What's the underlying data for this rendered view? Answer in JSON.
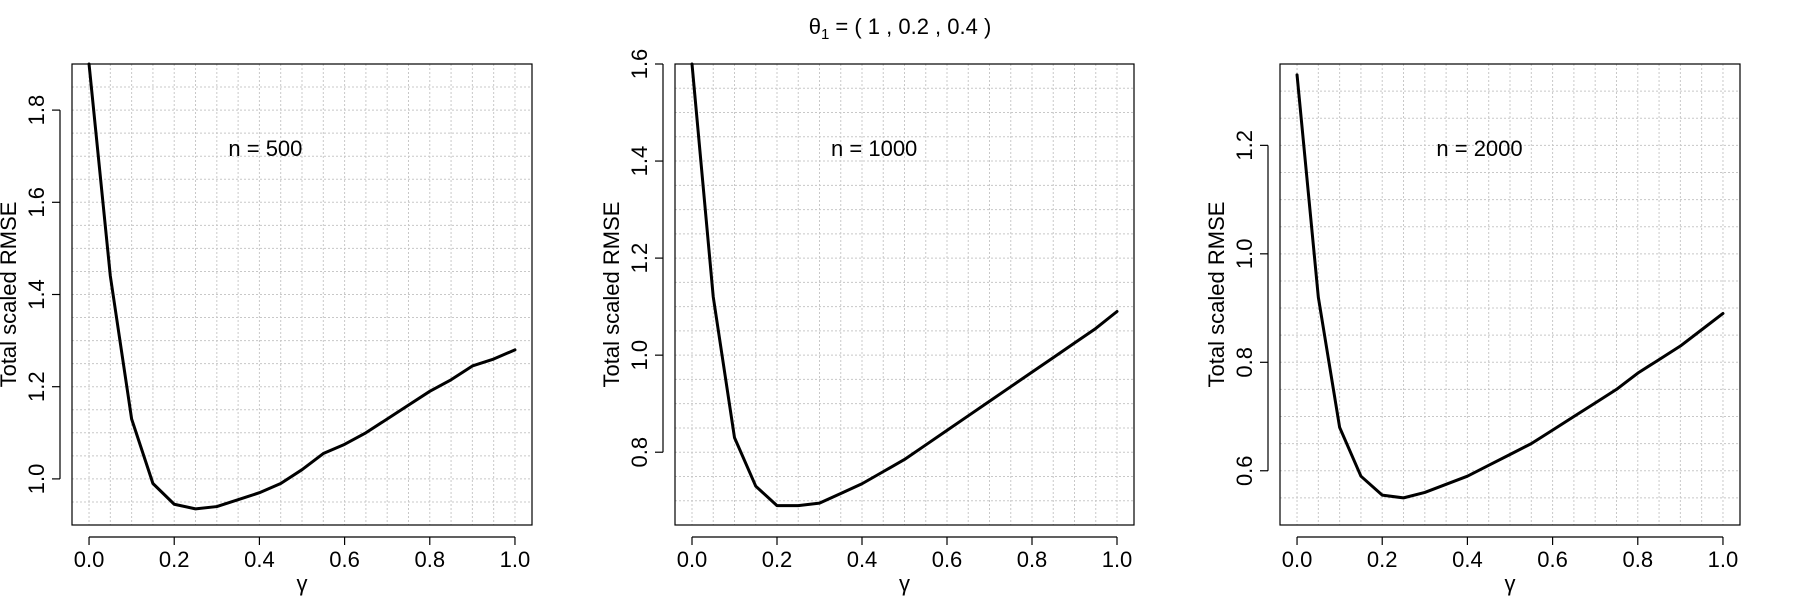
{
  "title": {
    "symbol": "θ",
    "subscript": "1",
    "rest": " =  ( 1 ,  0.2 ,  0.4 )"
  },
  "chart_data": [
    {
      "type": "line",
      "xlabel": "γ",
      "ylabel": "Total scaled RMSE",
      "annotation": "n = 500",
      "xlim": [
        -0.04,
        1.04
      ],
      "ylim": [
        0.9,
        1.9
      ],
      "grid": true,
      "x_ticks": [
        0.0,
        0.2,
        0.4,
        0.6,
        0.8,
        1.0
      ],
      "x_tick_labels": [
        "0.0",
        "0.2",
        "0.4",
        "0.6",
        "0.8",
        "1.0"
      ],
      "y_ticks": [
        1.0,
        1.2,
        1.4,
        1.6,
        1.8
      ],
      "y_tick_labels": [
        "1.0",
        "1.2",
        "1.4",
        "1.6",
        "1.8"
      ],
      "x": [
        0.0,
        0.05,
        0.1,
        0.15,
        0.2,
        0.25,
        0.3,
        0.35,
        0.4,
        0.45,
        0.5,
        0.55,
        0.6,
        0.65,
        0.7,
        0.75,
        0.8,
        0.85,
        0.9,
        0.95,
        1.0
      ],
      "y": [
        1.9,
        1.44,
        1.13,
        0.99,
        0.945,
        0.935,
        0.94,
        0.955,
        0.97,
        0.99,
        1.02,
        1.055,
        1.075,
        1.1,
        1.13,
        1.16,
        1.19,
        1.215,
        1.245,
        1.26,
        1.28
      ]
    },
    {
      "type": "line",
      "xlabel": "γ",
      "ylabel": "Total scaled RMSE",
      "annotation": "n = 1000",
      "xlim": [
        -0.04,
        1.04
      ],
      "ylim": [
        0.65,
        1.6
      ],
      "grid": true,
      "x_ticks": [
        0.0,
        0.2,
        0.4,
        0.6,
        0.8,
        1.0
      ],
      "x_tick_labels": [
        "0.0",
        "0.2",
        "0.4",
        "0.6",
        "0.8",
        "1.0"
      ],
      "y_ticks": [
        0.8,
        1.0,
        1.2,
        1.4,
        1.6
      ],
      "y_tick_labels": [
        "0.8",
        "1.0",
        "1.2",
        "1.4",
        "1.6"
      ],
      "x": [
        0.0,
        0.05,
        0.1,
        0.15,
        0.2,
        0.25,
        0.3,
        0.35,
        0.4,
        0.45,
        0.5,
        0.55,
        0.6,
        0.65,
        0.7,
        0.75,
        0.8,
        0.85,
        0.9,
        0.95,
        1.0
      ],
      "y": [
        1.6,
        1.12,
        0.83,
        0.73,
        0.69,
        0.69,
        0.695,
        0.715,
        0.735,
        0.76,
        0.785,
        0.815,
        0.845,
        0.875,
        0.905,
        0.935,
        0.965,
        0.995,
        1.025,
        1.055,
        1.09
      ]
    },
    {
      "type": "line",
      "xlabel": "γ",
      "ylabel": "Total scaled RMSE",
      "annotation": "n = 2000",
      "xlim": [
        -0.04,
        1.04
      ],
      "ylim": [
        0.5,
        1.35
      ],
      "grid": true,
      "x_ticks": [
        0.0,
        0.2,
        0.4,
        0.6,
        0.8,
        1.0
      ],
      "x_tick_labels": [
        "0.0",
        "0.2",
        "0.4",
        "0.6",
        "0.8",
        "1.0"
      ],
      "y_ticks": [
        0.6,
        0.8,
        1.0,
        1.2
      ],
      "y_tick_labels": [
        "0.6",
        "0.8",
        "1.0",
        "1.2"
      ],
      "x": [
        0.0,
        0.05,
        0.1,
        0.15,
        0.2,
        0.25,
        0.3,
        0.35,
        0.4,
        0.45,
        0.5,
        0.55,
        0.6,
        0.65,
        0.7,
        0.75,
        0.8,
        0.85,
        0.9,
        0.95,
        1.0
      ],
      "y": [
        1.33,
        0.92,
        0.68,
        0.59,
        0.555,
        0.55,
        0.56,
        0.575,
        0.59,
        0.61,
        0.63,
        0.65,
        0.675,
        0.7,
        0.725,
        0.75,
        0.78,
        0.805,
        0.83,
        0.86,
        0.89
      ]
    }
  ]
}
